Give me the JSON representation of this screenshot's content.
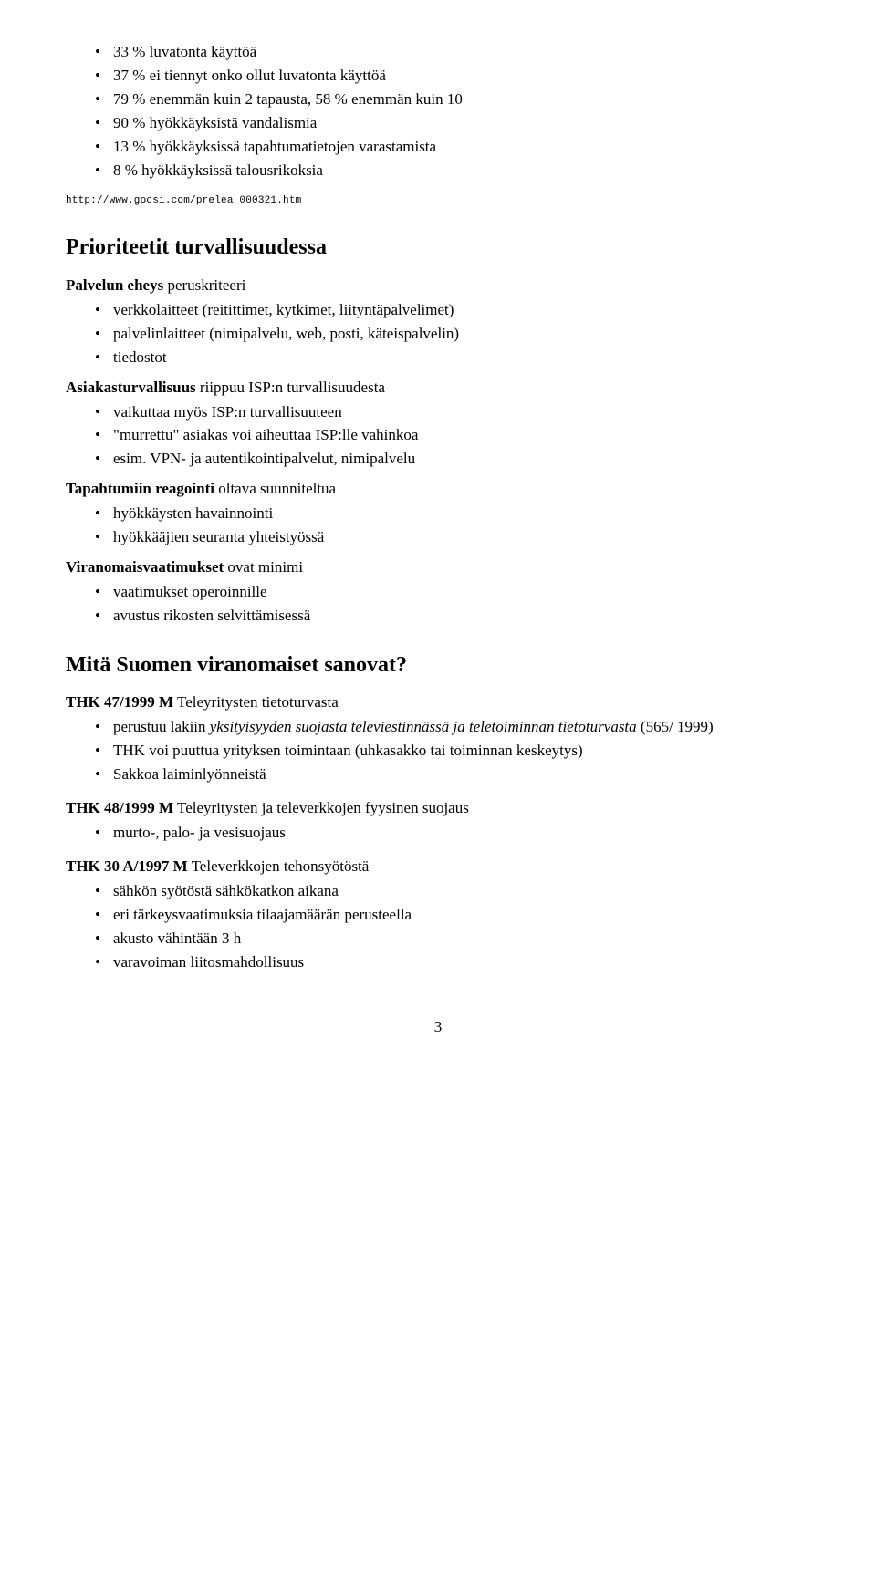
{
  "top_bullets": [
    "33 % luvatonta käyttöä",
    "37 % ei tiennyt onko ollut luvatonta käyttöä",
    "79 % enemmän kuin 2 tapausta, 58 % enemmän kuin 10",
    "90 % hyökkäyksistä vandalismia",
    "13 % hyökkäyksissä tapahtumatietojen varastamista",
    "8 % hyökkäyksissä talousrikoksia"
  ],
  "url": "http://www.gocsi.com/prelea_000321.htm",
  "h1": "Prioriteetit turvallisuudessa",
  "sec1": {
    "g1": {
      "term": "Palvelun eheys",
      "desc": "peruskriteeri",
      "items": [
        "verkkolaitteet (reitittimet, kytkimet, liityntäpalvelimet)",
        "palvelinlaitteet (nimipalvelu, web, posti, käteispalvelin)",
        "tiedostot"
      ]
    },
    "g2": {
      "term": "Asiakasturvallisuus",
      "desc": "riippuu ISP:n turvallisuudesta",
      "items": [
        "vaikuttaa myös ISP:n turvallisuuteen",
        "\"murrettu\" asiakas voi aiheuttaa ISP:lle vahinkoa",
        "esim. VPN- ja autentikointipalvelut, nimipalvelu"
      ]
    },
    "g3": {
      "term": "Tapahtumiin reagointi",
      "desc": "oltava suunniteltua",
      "items": [
        "hyökkäysten havainnointi",
        "hyökkääjien seuranta yhteistyössä"
      ]
    },
    "g4": {
      "term": "Viranomaisvaatimukset",
      "desc": "ovat minimi",
      "items": [
        "vaatimukset operoinnille",
        "avustus rikosten selvittämisessä"
      ]
    }
  },
  "h2": "Mitä Suomen viranomaiset sanovat?",
  "sec2": {
    "g1": {
      "term": "THK 47/1999 M",
      "desc": "Teleyritysten tietoturvasta",
      "items_pre_italic": "perustuu lakiin ",
      "items_italic": "yksityisyyden suojasta televiestinnässä ja teletoiminnan tietoturvasta",
      "items_post_italic": " (565/ 1999)",
      "items_rest": [
        "THK voi puuttua yrityksen toimintaan (uhkasakko tai toiminnan keskeytys)",
        "Sakkoa laiminlyönneistä"
      ]
    },
    "g2": {
      "term": "THK 48/1999 M",
      "desc": "Teleyritysten ja televerkkojen fyysinen suojaus",
      "items": [
        "murto-, palo- ja vesisuojaus"
      ]
    },
    "g3": {
      "term": "THK 30 A/1997 M",
      "desc": "Televerkkojen tehonsyötöstä",
      "items": [
        "sähkön syötöstä sähkökatkon aikana",
        "eri tärkeysvaatimuksia tilaajamäärän perusteella",
        "akusto vähintään 3 h",
        "varavoiman liitosmahdollisuus"
      ]
    }
  },
  "page_number": "3"
}
